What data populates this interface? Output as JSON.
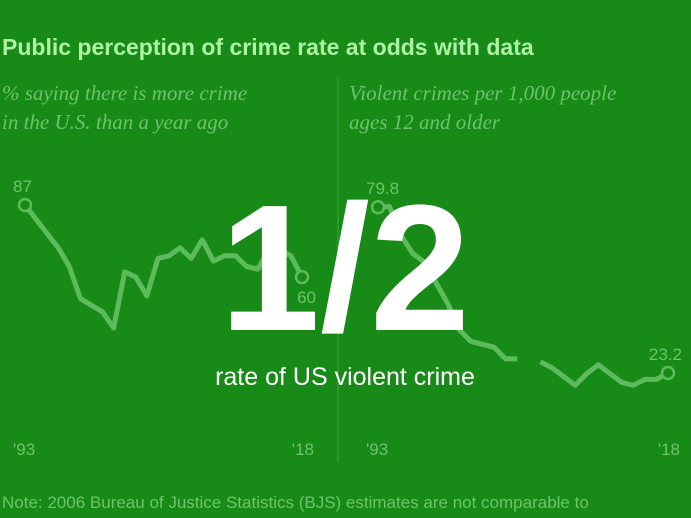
{
  "headline": "Public perception of crime rate at odds with data",
  "note": "Note: 2006 Bureau of Justice Statistics (BJS) estimates are not comparable to",
  "overlay": {
    "big": "1/2",
    "caption": "rate of US violent crime"
  },
  "chart_data": [
    {
      "type": "line",
      "subtitle": [
        "% saying there is more crime",
        "in the U.S. than a year ago"
      ],
      "color": "#5cbc5c",
      "x": [
        1993,
        1996,
        1997,
        1998,
        2000,
        2001,
        2002,
        2003,
        2004,
        2005,
        2006,
        2007,
        2008,
        2009,
        2010,
        2011,
        2012,
        2013,
        2014,
        2015,
        2016,
        2017,
        2018
      ],
      "values": [
        87,
        71,
        64,
        52,
        47,
        41,
        62,
        60,
        53,
        67,
        68,
        71,
        67,
        74,
        66,
        68,
        68,
        64,
        63,
        70,
        70,
        68,
        60
      ],
      "xlim": [
        1993,
        2018
      ],
      "ylim": [
        35,
        90
      ],
      "xticks": [
        {
          "value": 1993,
          "label": "'93"
        },
        {
          "value": 2018,
          "label": "'18"
        }
      ]
    },
    {
      "type": "line",
      "subtitle": [
        "Violent crimes per 1,000 people",
        "ages 12 and older"
      ],
      "color": "#5cbc5c",
      "x": [
        1993,
        1994,
        1995,
        1996,
        1997,
        1998,
        1999,
        2000,
        2001,
        2002,
        2003,
        2004,
        2005,
        2006,
        2007,
        2008,
        2009,
        2010,
        2011,
        2012,
        2013,
        2014,
        2015,
        2016,
        2017,
        2018
      ],
      "values": [
        79.8,
        80,
        70,
        64,
        61,
        54,
        47,
        38,
        34,
        33,
        32,
        28,
        28,
        null,
        27,
        25,
        22,
        19,
        23,
        26,
        23,
        20,
        19,
        21,
        21,
        23.2
      ],
      "xlim": [
        1993,
        2018
      ],
      "ylim": [
        15,
        85
      ],
      "xticks": [
        {
          "value": 1993,
          "label": "'93"
        },
        {
          "value": 2018,
          "label": "'18"
        }
      ]
    }
  ]
}
